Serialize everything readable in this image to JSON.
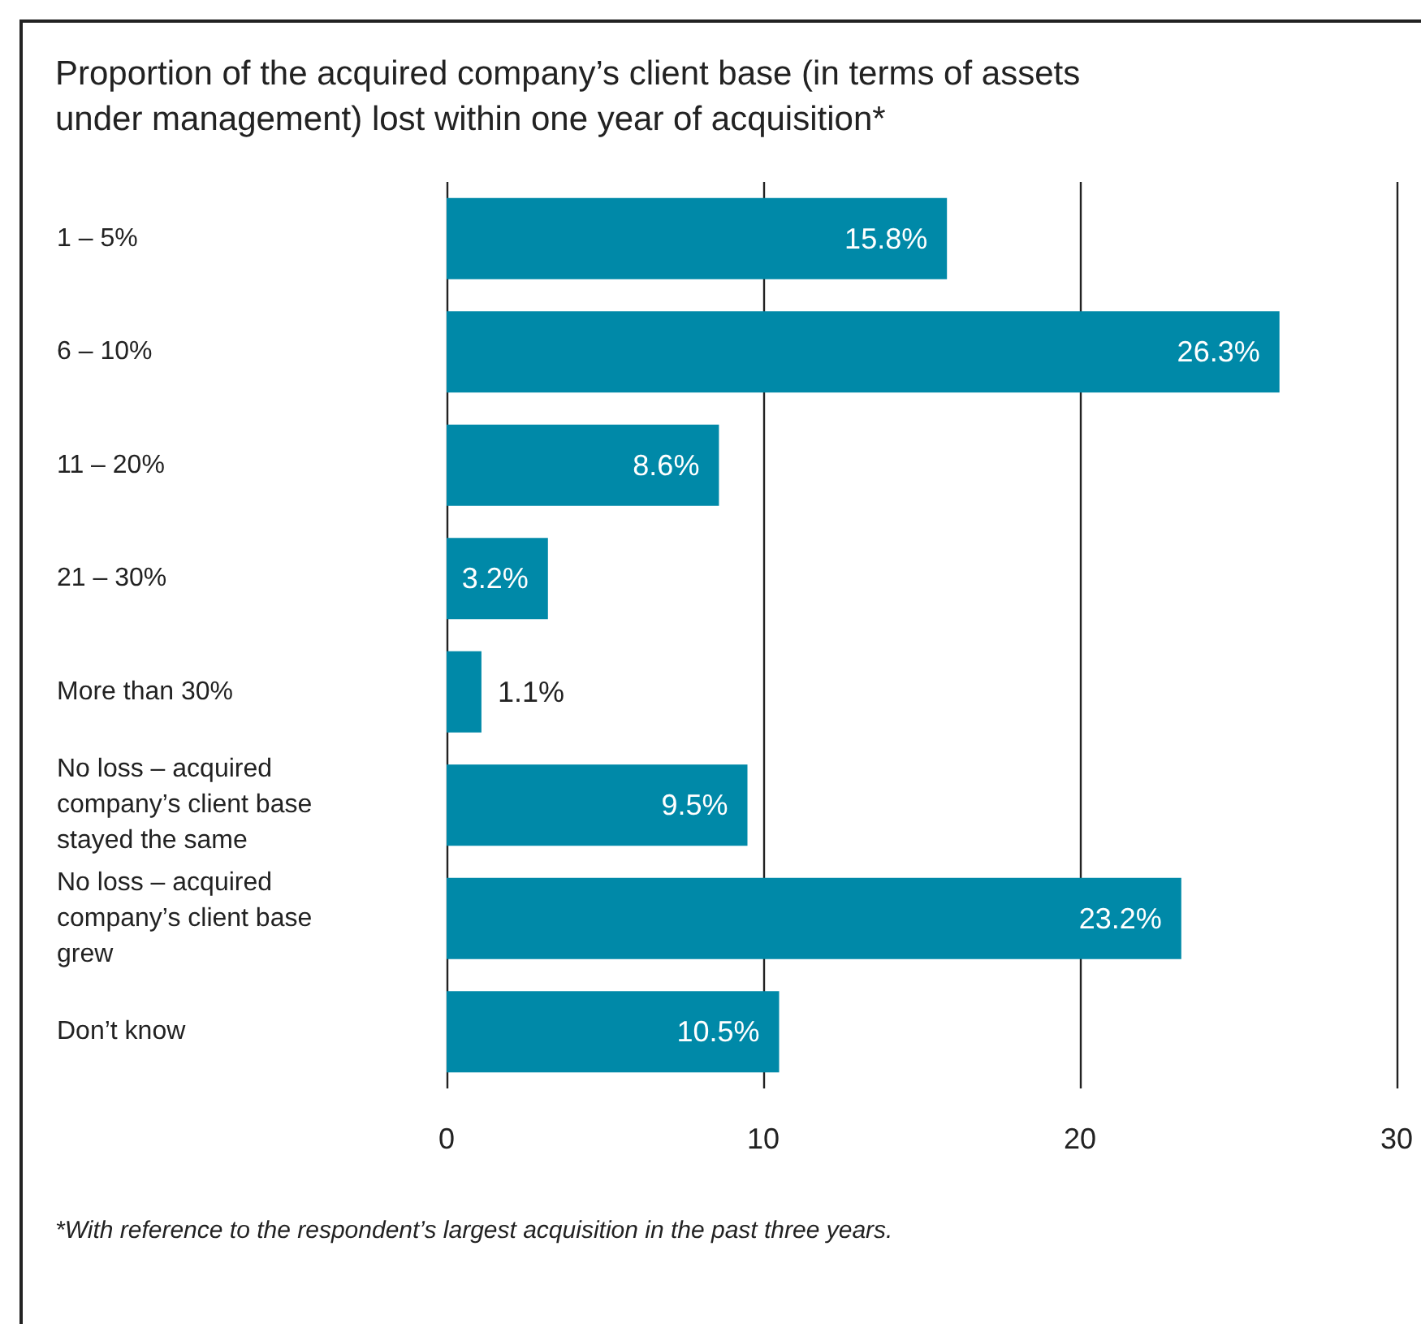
{
  "chart_data": {
    "type": "bar",
    "orientation": "horizontal",
    "title": "Proportion of the acquired company’s client base (in terms of assets under management) lost within one year of acquisition*",
    "categories": [
      "1 – 5%",
      "6 – 10%",
      "11 – 20%",
      "21 – 30%",
      "More than 30%",
      "No loss – acquired company’s client base stayed the same",
      "No loss – acquired company’s client base grew",
      "Don’t know"
    ],
    "values": [
      15.8,
      26.3,
      8.6,
      3.2,
      1.1,
      9.5,
      23.2,
      10.5
    ],
    "value_labels": [
      "15.8%",
      "26.3%",
      "8.6%",
      "3.2%",
      "1.1%",
      "9.5%",
      "23.2%",
      "10.5%"
    ],
    "color": "#0089a8",
    "xlim": [
      0,
      30
    ],
    "xticks": [
      0,
      10,
      20,
      30
    ],
    "grid": "x",
    "annotations": [
      "*With reference to the respondent’s largest acquisition in the past three years."
    ]
  }
}
